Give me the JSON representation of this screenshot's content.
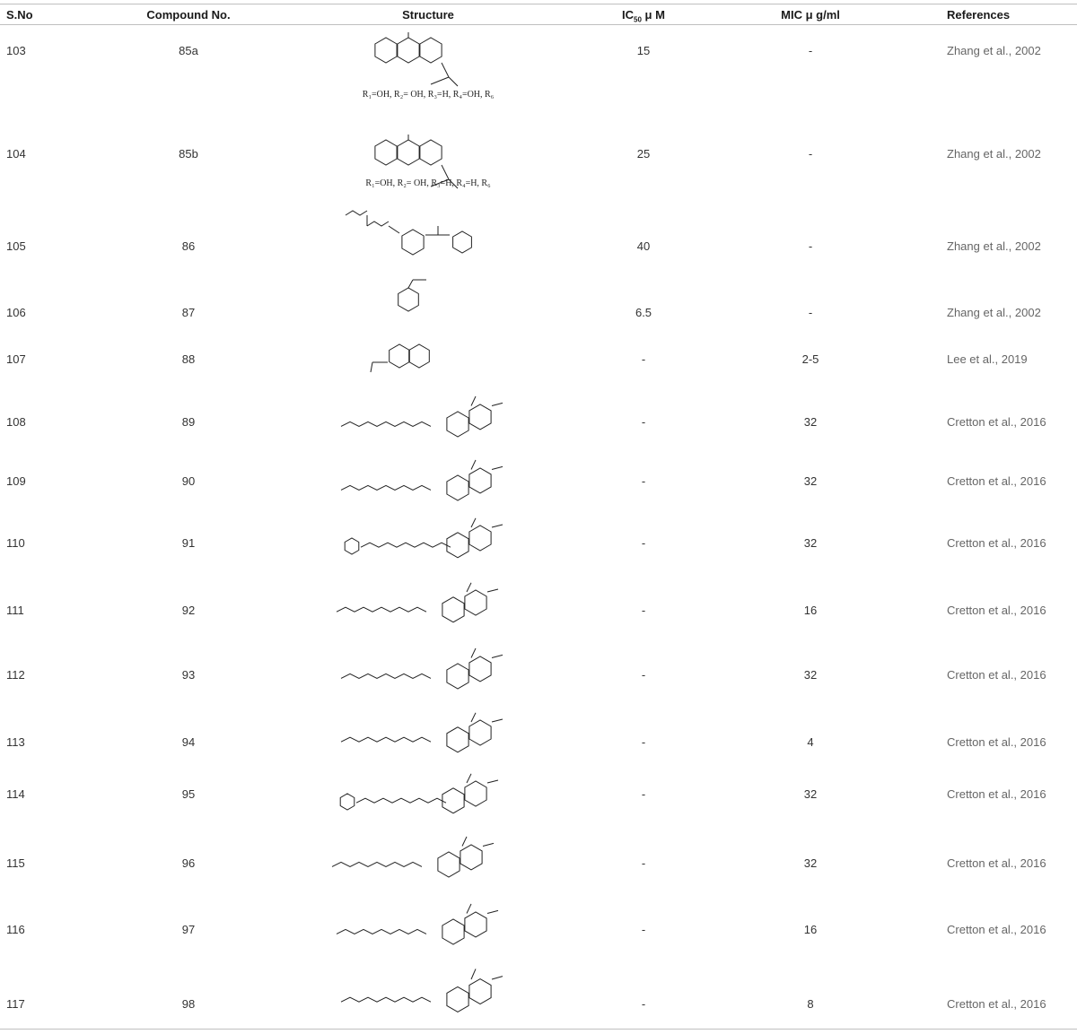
{
  "table": {
    "headers": {
      "sno": "S.No",
      "compound": "Compound No.",
      "structure": "Structure",
      "ic50_prefix": "IC",
      "ic50_sub": "50",
      "ic50_suffix": " μ M",
      "mic": "MIC μ g/ml",
      "references": "References"
    },
    "rows": [
      {
        "sno": "103",
        "compound": "85a",
        "ic50": "15",
        "mic": "-",
        "ref": "Zhang et al., 2002",
        "caption": "R₁=OH, R₂= OH, R₃=H, R₄=OH, R₆",
        "structure_type": "xanthone"
      },
      {
        "sno": "104",
        "compound": "85b",
        "ic50": "25",
        "mic": "-",
        "ref": "Zhang et al., 2002",
        "caption": "R₁=OH, R₂= OH, R₃=H, R₄=H, R₆",
        "structure_type": "xanthone"
      },
      {
        "sno": "105",
        "compound": "86",
        "ic50": "40",
        "mic": "-",
        "ref": "Zhang et al., 2002",
        "caption": "",
        "structure_type": "benzophenone"
      },
      {
        "sno": "106",
        "compound": "87",
        "ic50": "6.5",
        "mic": "-",
        "ref": "Zhang et al., 2002",
        "caption": "",
        "structure_type": "benzoic-acid"
      },
      {
        "sno": "107",
        "compound": "88",
        "ic50": "-",
        "mic": "2-5",
        "ref": "Lee et al., 2019",
        "caption": "",
        "structure_type": "naphthalene"
      },
      {
        "sno": "108",
        "compound": "89",
        "ic50": "-",
        "mic": "32",
        "ref": "Cretton et al., 2016",
        "caption": "",
        "structure_type": "quinolone"
      },
      {
        "sno": "109",
        "compound": "90",
        "ic50": "-",
        "mic": "32",
        "ref": "Cretton et al., 2016",
        "caption": "",
        "structure_type": "quinolone"
      },
      {
        "sno": "110",
        "compound": "91",
        "ic50": "-",
        "mic": "32",
        "ref": "Cretton et al., 2016",
        "caption": "",
        "structure_type": "quinolone-phenyl"
      },
      {
        "sno": "111",
        "compound": "92",
        "ic50": "-",
        "mic": "16",
        "ref": "Cretton et al., 2016",
        "caption": "",
        "structure_type": "quinolone"
      },
      {
        "sno": "112",
        "compound": "93",
        "ic50": "-",
        "mic": "32",
        "ref": "Cretton et al., 2016",
        "caption": "",
        "structure_type": "quinolone"
      },
      {
        "sno": "113",
        "compound": "94",
        "ic50": "-",
        "mic": "4",
        "ref": "Cretton et al., 2016",
        "caption": "",
        "structure_type": "quinolone"
      },
      {
        "sno": "114",
        "compound": "95",
        "ic50": "-",
        "mic": "32",
        "ref": "Cretton et al., 2016",
        "caption": "",
        "structure_type": "quinolone-phenyl"
      },
      {
        "sno": "115",
        "compound": "96",
        "ic50": "-",
        "mic": "32",
        "ref": "Cretton et al., 2016",
        "caption": "",
        "structure_type": "quinolone"
      },
      {
        "sno": "116",
        "compound": "97",
        "ic50": "-",
        "mic": "16",
        "ref": "Cretton et al., 2016",
        "caption": "",
        "structure_type": "quinolone"
      },
      {
        "sno": "117",
        "compound": "98",
        "ic50": "-",
        "mic": "8",
        "ref": "Cretton et al., 2016",
        "caption": "",
        "structure_type": "quinolone"
      }
    ]
  },
  "colors": {
    "text": "#333333",
    "reference": "#666666",
    "rule": "#bfbfbf",
    "bond": "#222222"
  }
}
